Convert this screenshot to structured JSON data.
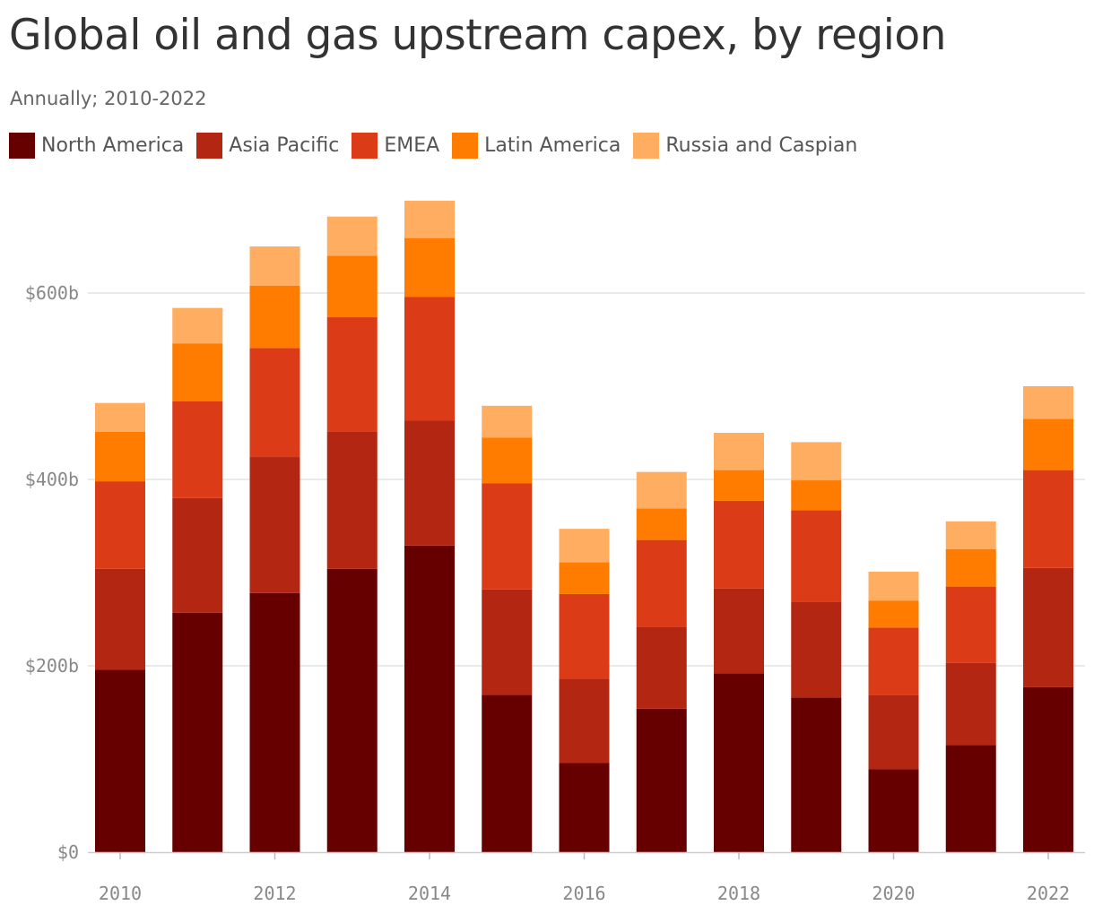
{
  "title": "Global oil and gas upstream capex, by region",
  "subtitle": "Annually; 2010-2022",
  "legend": [
    {
      "label": "North America",
      "color": "#660000"
    },
    {
      "label": "Asia Pacific",
      "color": "#b32712"
    },
    {
      "label": "EMEA",
      "color": "#db3c17"
    },
    {
      "label": "Latin America",
      "color": "#ff7c00"
    },
    {
      "label": "Russia and Caspian",
      "color": "#ffad60"
    }
  ],
  "chart_data": {
    "type": "bar",
    "stacked": true,
    "title": "Global oil and gas upstream capex, by region",
    "subtitle": "Annually; 2010-2022",
    "categories": [
      "2010",
      "2011",
      "2012",
      "2013",
      "2014",
      "2015",
      "2016",
      "2017",
      "2018",
      "2019",
      "2020",
      "2021",
      "2022"
    ],
    "series": [
      {
        "name": "North America",
        "color": "#660000",
        "values": [
          196,
          257,
          278,
          304,
          329,
          169,
          96,
          154,
          192,
          166,
          89,
          115,
          177
        ]
      },
      {
        "name": "Asia Pacific",
        "color": "#b32712",
        "values": [
          108,
          123,
          146,
          147,
          134,
          113,
          90,
          88,
          91,
          103,
          80,
          88,
          128
        ]
      },
      {
        "name": "EMEA",
        "color": "#db3c17",
        "values": [
          94,
          104,
          117,
          123,
          133,
          114,
          91,
          93,
          94,
          98,
          72,
          82,
          105
        ]
      },
      {
        "name": "Latin America",
        "color": "#ff7c00",
        "values": [
          53,
          62,
          67,
          66,
          63,
          49,
          34,
          34,
          33,
          32,
          29,
          40,
          55
        ]
      },
      {
        "name": "Russia and Caspian",
        "color": "#ffad60",
        "values": [
          31,
          38,
          42,
          42,
          40,
          34,
          36,
          39,
          40,
          41,
          31,
          30,
          35
        ]
      }
    ],
    "y_ticks": [
      "$0",
      "$200b",
      "$400b",
      "$600b"
    ],
    "y_tick_values": [
      0,
      200,
      400,
      600
    ],
    "x_ticks": [
      "2010",
      "2012",
      "2014",
      "2016",
      "2018",
      "2020",
      "2022"
    ],
    "ylim": [
      0,
      700
    ],
    "grid": true
  }
}
